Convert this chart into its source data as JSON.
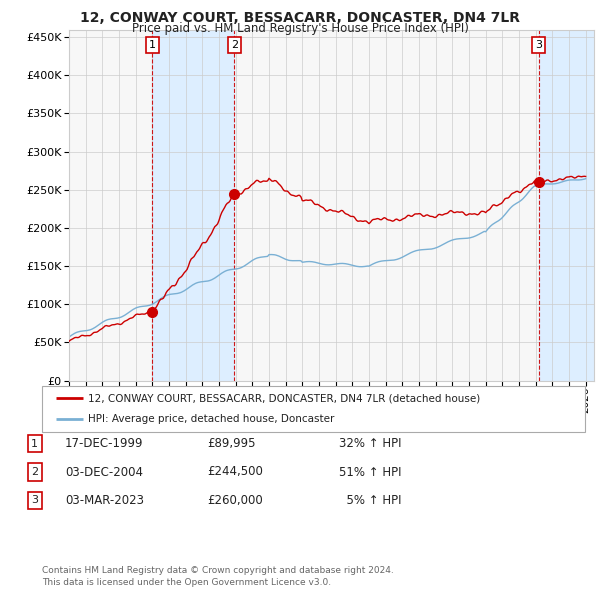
{
  "title": "12, CONWAY COURT, BESSACARR, DONCASTER, DN4 7LR",
  "subtitle": "Price paid vs. HM Land Registry's House Price Index (HPI)",
  "ylim": [
    0,
    460000
  ],
  "yticks": [
    0,
    50000,
    100000,
    150000,
    200000,
    250000,
    300000,
    350000,
    400000,
    450000
  ],
  "xlim_start": 1995.0,
  "xlim_end": 2026.5,
  "sales": [
    {
      "label": "1",
      "date_num": 2000.0,
      "price": 89995
    },
    {
      "label": "2",
      "date_num": 2004.92,
      "price": 244500
    },
    {
      "label": "3",
      "date_num": 2023.17,
      "price": 260000
    }
  ],
  "sale_color": "#cc0000",
  "hpi_color": "#7ab0d4",
  "shade_color": "#ddeeff",
  "legend_entries": [
    "12, CONWAY COURT, BESSACARR, DONCASTER, DN4 7LR (detached house)",
    "HPI: Average price, detached house, Doncaster"
  ],
  "table_rows": [
    {
      "num": "1",
      "date": "17-DEC-1999",
      "price": "£89,995",
      "change": "32% ↑ HPI"
    },
    {
      "num": "2",
      "date": "03-DEC-2004",
      "price": "£244,500",
      "change": "51% ↑ HPI"
    },
    {
      "num": "3",
      "date": "03-MAR-2023",
      "price": "£260,000",
      "change": "  5% ↑ HPI"
    }
  ],
  "footer": "Contains HM Land Registry data © Crown copyright and database right 2024.\nThis data is licensed under the Open Government Licence v3.0.",
  "background_color": "#ffffff",
  "plot_bg_color": "#f7f7f7",
  "grid_color": "#cccccc",
  "vline_color": "#cc0000"
}
